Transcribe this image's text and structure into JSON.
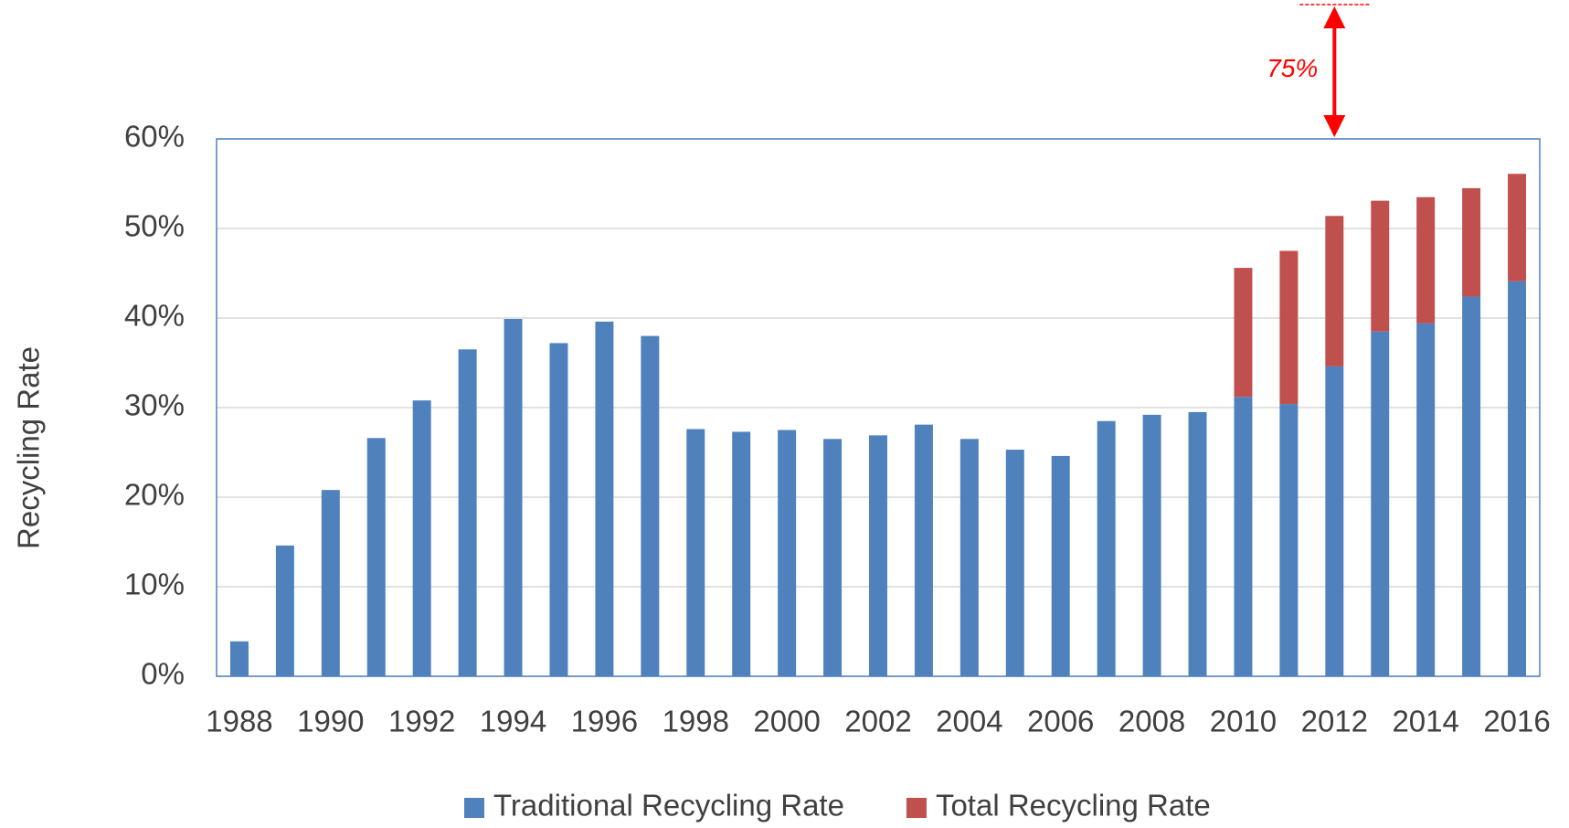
{
  "chart_data": {
    "type": "stacked_bar",
    "y_label": "Recycling Rate",
    "categories": [
      "1988",
      null,
      "1990",
      null,
      "1992",
      null,
      "1994",
      null,
      "1996",
      null,
      "1998",
      null,
      "2000",
      null,
      "2002",
      null,
      "2004",
      null,
      "2006",
      null,
      "2008",
      null,
      "2010",
      null,
      "2012",
      null,
      "2014",
      null,
      "2016"
    ],
    "series": [
      {
        "name": "Traditional Recycling Rate",
        "color": "#4f81bd",
        "values": [
          3.9,
          14.6,
          20.8,
          26.6,
          30.8,
          36.5,
          39.9,
          37.2,
          39.6,
          38.0,
          27.6,
          27.3,
          27.5,
          26.5,
          26.9,
          28.1,
          26.5,
          25.3,
          24.6,
          28.5,
          29.2,
          29.5,
          31.2,
          30.4,
          34.6,
          38.5,
          39.4,
          42.4,
          44.1
        ]
      },
      {
        "name": "Total Recycling Rate",
        "color": "#c0504d",
        "values": [
          null,
          null,
          null,
          null,
          null,
          null,
          null,
          null,
          null,
          null,
          null,
          null,
          null,
          null,
          null,
          null,
          null,
          null,
          null,
          null,
          null,
          null,
          14.4,
          17.1,
          16.8,
          14.6,
          14.1,
          12.1,
          12.0
        ]
      }
    ],
    "ylim": [
      0,
      60
    ],
    "yticks": [
      {
        "value": 0,
        "label": "0%"
      },
      {
        "value": 10,
        "label": "10%"
      },
      {
        "value": 20,
        "label": "20%"
      },
      {
        "value": 30,
        "label": "30%"
      },
      {
        "value": 40,
        "label": "40%"
      },
      {
        "value": 50,
        "label": "50%"
      },
      {
        "value": 60,
        "label": "60%"
      }
    ],
    "grid": true,
    "legend": "bottom",
    "annotation": {
      "label": "75%",
      "value": 75,
      "category": "2012",
      "color": "#ff0000"
    }
  }
}
